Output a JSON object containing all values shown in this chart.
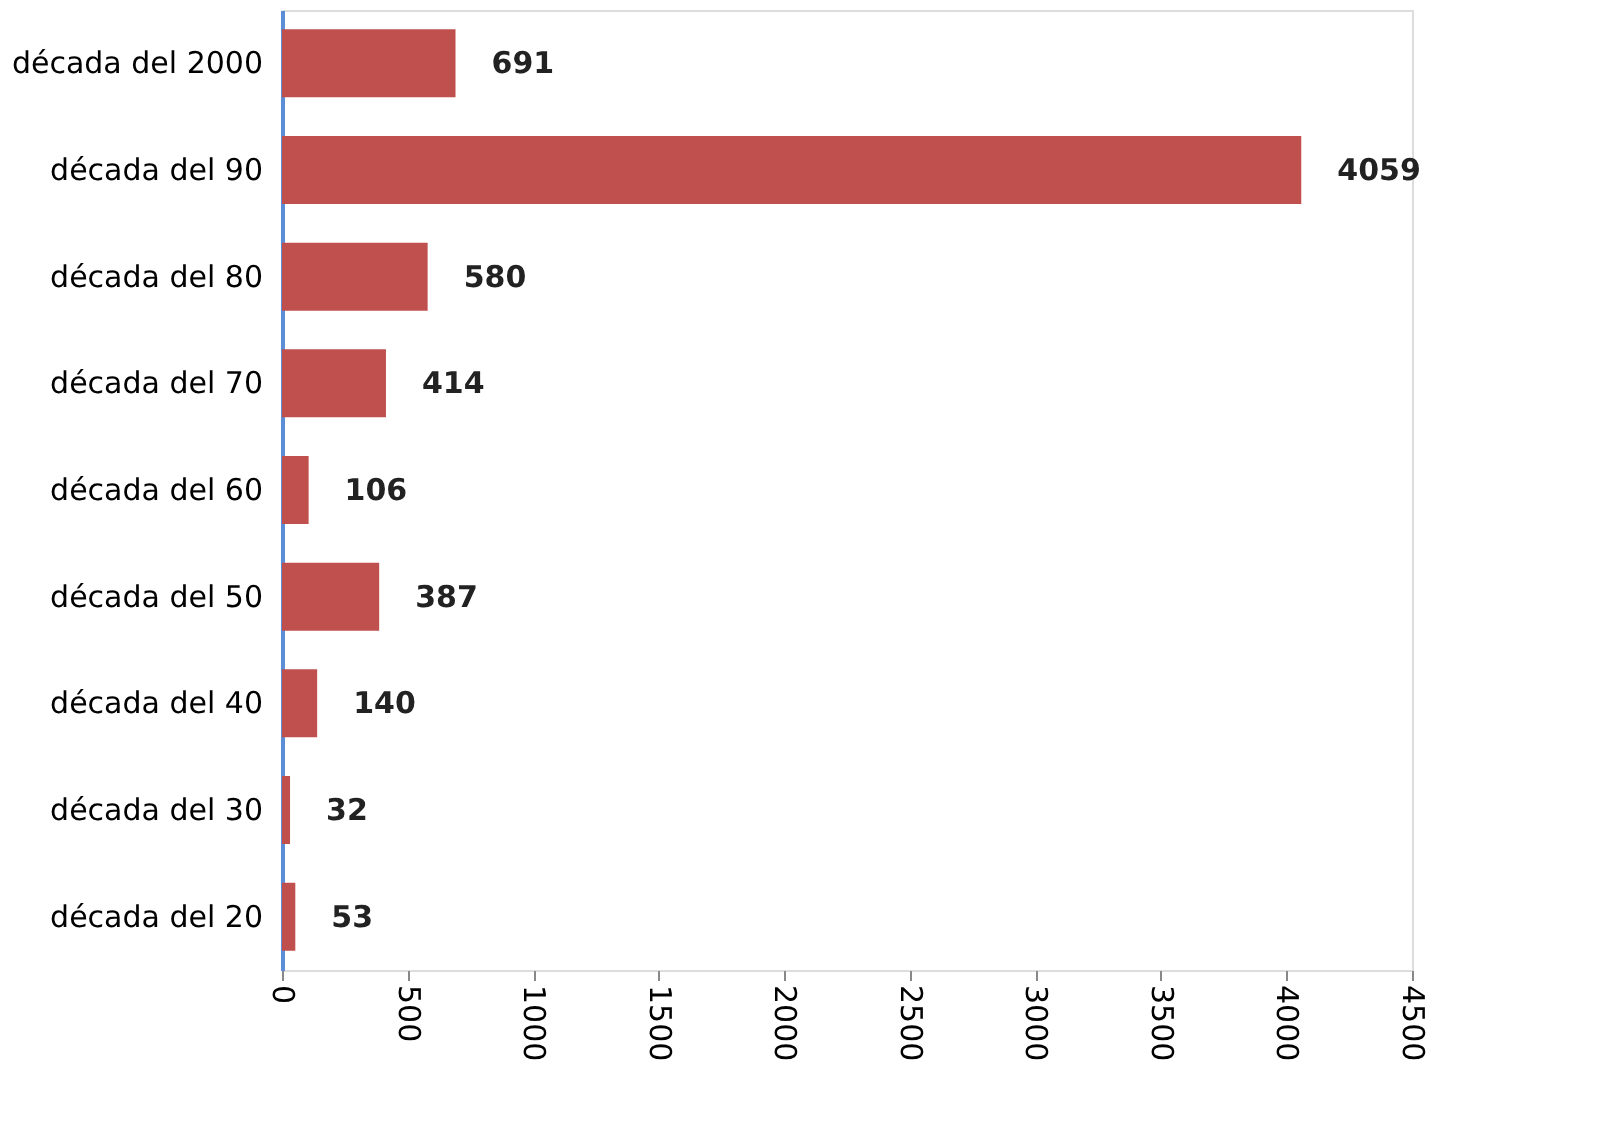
{
  "chart_data": {
    "type": "bar",
    "orientation": "horizontal",
    "categories": [
      "década del 2000",
      "década del 90",
      "década del 80",
      "década del 70",
      "década del 60",
      "década del 50",
      "década del 40",
      "década del 30",
      "década del 20"
    ],
    "values": [
      691,
      4059,
      580,
      414,
      106,
      387,
      140,
      32,
      53
    ],
    "color": "#c0504d",
    "xlim": [
      0,
      4500
    ],
    "xticks": [
      0,
      500,
      1000,
      1500,
      2000,
      2500,
      3000,
      3500,
      4000,
      4500
    ],
    "data_labels": true,
    "grid": false
  }
}
